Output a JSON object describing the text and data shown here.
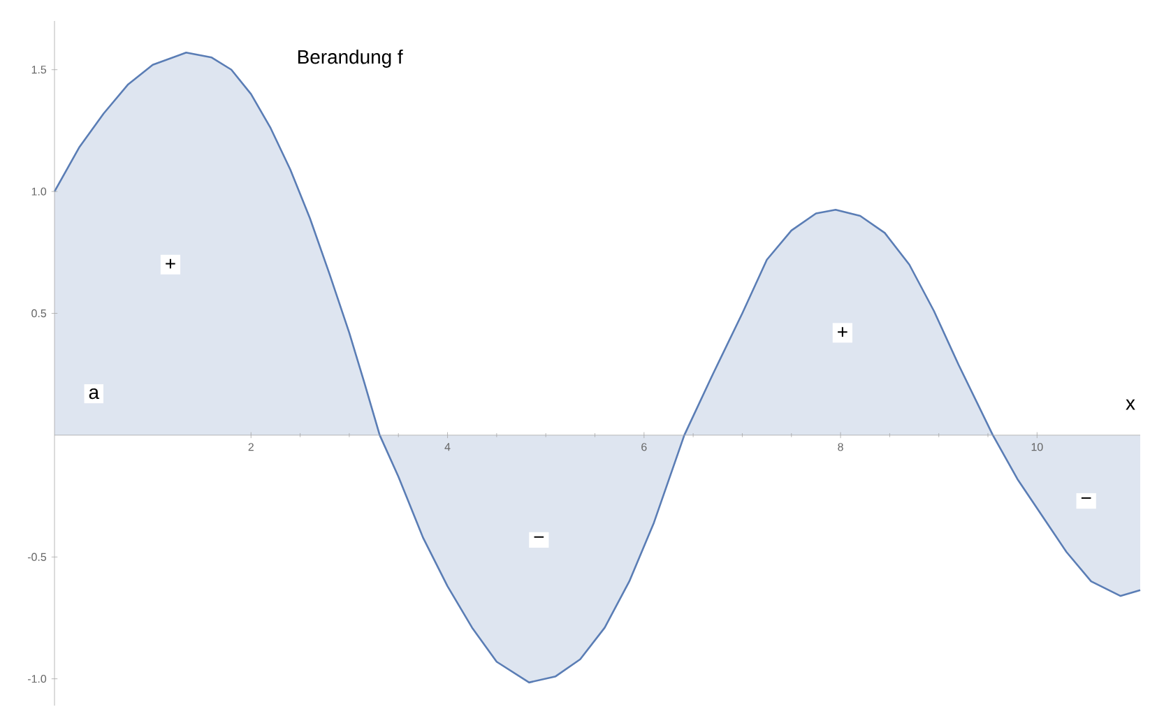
{
  "chart_data": {
    "type": "area",
    "xlabel": "x",
    "xlim": [
      0,
      11.05
    ],
    "ylim": [
      -1.11,
      1.7
    ],
    "xticks": [
      2,
      4,
      6,
      8,
      10
    ],
    "yticks": [
      {
        "value": -1.0,
        "label": "-1.0"
      },
      {
        "value": -0.5,
        "label": "-0.5"
      },
      {
        "value": 0.5,
        "label": "0.5"
      },
      {
        "value": 1.0,
        "label": "1.0"
      },
      {
        "value": 1.5,
        "label": "1.5"
      }
    ],
    "series": [
      {
        "name": "Berandung f",
        "color": "#5a7db5",
        "x": [
          0,
          0.25,
          0.5,
          0.75,
          1.0,
          1.34,
          1.6,
          1.8,
          2.0,
          2.2,
          2.4,
          2.6,
          2.8,
          3.0,
          3.15,
          3.31,
          3.5,
          3.75,
          4.0,
          4.25,
          4.5,
          4.83,
          5.1,
          5.35,
          5.6,
          5.85,
          6.1,
          6.41,
          6.7,
          7.0,
          7.25,
          7.5,
          7.75,
          7.95,
          8.2,
          8.45,
          8.7,
          8.95,
          9.2,
          9.55,
          9.8,
          10.05,
          10.3,
          10.55,
          10.85,
          11.05
        ],
        "values": [
          1.0,
          1.18,
          1.32,
          1.44,
          1.52,
          1.57,
          1.55,
          1.5,
          1.4,
          1.26,
          1.09,
          0.89,
          0.66,
          0.42,
          0.22,
          0,
          -0.17,
          -0.42,
          -0.62,
          -0.79,
          -0.93,
          -1.015,
          -0.99,
          -0.92,
          -0.79,
          -0.6,
          -0.36,
          0,
          0.25,
          0.5,
          0.72,
          0.84,
          0.91,
          0.925,
          0.9,
          0.83,
          0.7,
          0.51,
          0.29,
          0,
          -0.18,
          -0.33,
          -0.48,
          -0.6,
          -0.66,
          -0.636
        ]
      }
    ],
    "annotations": [
      {
        "text": "a",
        "x": 0.4,
        "y": 0.17
      },
      {
        "text": "+",
        "x": 1.18,
        "y": 0.7
      },
      {
        "text": "−",
        "x": 4.93,
        "y": -0.43
      },
      {
        "text": "+",
        "x": 8.02,
        "y": 0.42
      },
      {
        "text": "−",
        "x": 10.5,
        "y": -0.27
      }
    ]
  }
}
